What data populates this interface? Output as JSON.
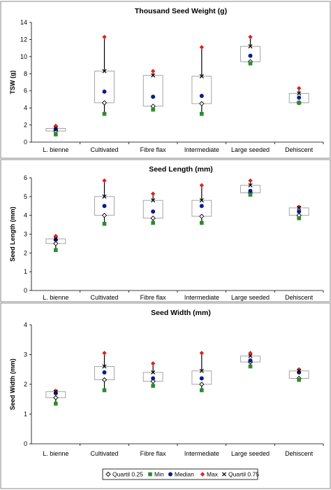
{
  "legend": {
    "entries": [
      "Quartil 0.25",
      "Min",
      "Median",
      "Max",
      "Quartil 0.75"
    ]
  },
  "colors": {
    "min": "#2e8b2e",
    "median": "#0a1e8c",
    "max": "#e02020",
    "box": "#9a9a9a",
    "panel_border": "#888888"
  },
  "chart_data": [
    {
      "type": "boxplot",
      "title": "Thousand Seed Weight (g)",
      "ylabel": "TSW (g)",
      "xlabel": "",
      "categories": [
        "L. bienne",
        "Cultivated",
        "Fibre flax",
        "Intermediate",
        "Large seeded",
        "Dehiscent"
      ],
      "ylim": [
        0,
        14
      ],
      "yticks": [
        "0",
        "2",
        "4",
        "6",
        "8",
        "10",
        "12",
        "14"
      ],
      "grid": false,
      "series": [
        {
          "name": "Quartil 0.25",
          "values": [
            1.3,
            4.6,
            4.2,
            4.5,
            9.4,
            4.6
          ]
        },
        {
          "name": "Min",
          "values": [
            0.9,
            3.3,
            3.8,
            3.3,
            9.2,
            4.6
          ]
        },
        {
          "name": "Median",
          "values": [
            1.5,
            5.9,
            5.3,
            5.4,
            10.1,
            5.2
          ]
        },
        {
          "name": "Max",
          "values": [
            1.9,
            12.3,
            8.3,
            11.1,
            12.3,
            6.3
          ]
        },
        {
          "name": "Quartil 0.75",
          "values": [
            1.6,
            8.3,
            7.8,
            7.7,
            11.2,
            5.7
          ]
        }
      ]
    },
    {
      "type": "boxplot",
      "title": "Seed Length (mm)",
      "ylabel": "Seed Length (mm)",
      "xlabel": "",
      "categories": [
        "L. bienne",
        "Cultivated",
        "Fibre flax",
        "Intermediate",
        "Large seeded",
        "Dehiscent"
      ],
      "ylim": [
        0,
        6
      ],
      "yticks": [
        "0",
        "1",
        "2",
        "3",
        "4",
        "5",
        "6"
      ],
      "grid": false,
      "series": [
        {
          "name": "Quartil 0.25",
          "values": [
            2.5,
            4.0,
            3.85,
            3.95,
            5.2,
            4.0
          ]
        },
        {
          "name": "Min",
          "values": [
            2.15,
            3.55,
            3.6,
            3.6,
            5.1,
            3.85
          ]
        },
        {
          "name": "Median",
          "values": [
            2.7,
            4.5,
            4.2,
            4.5,
            5.3,
            4.2
          ]
        },
        {
          "name": "Max",
          "values": [
            2.9,
            5.85,
            5.15,
            5.6,
            5.85,
            4.45
          ]
        },
        {
          "name": "Quartil 0.75",
          "values": [
            2.75,
            5.0,
            4.8,
            4.8,
            5.6,
            4.4
          ]
        }
      ]
    },
    {
      "type": "boxplot",
      "title": "Seed Width (mm)",
      "ylabel": "Seed Width (mm)",
      "xlabel": "",
      "categories": [
        "L. bienne",
        "Cultivated",
        "Fibre flax",
        "Intermediate",
        "Large seeded",
        "Dehiscent"
      ],
      "ylim": [
        0,
        4
      ],
      "yticks": [
        "0",
        "1",
        "2",
        "3",
        "4"
      ],
      "grid": false,
      "series": [
        {
          "name": "Quartil 0.25",
          "values": [
            1.55,
            2.15,
            2.1,
            2.0,
            2.75,
            2.2
          ]
        },
        {
          "name": "Min",
          "values": [
            1.35,
            1.8,
            1.95,
            1.8,
            2.6,
            2.15
          ]
        },
        {
          "name": "Median",
          "values": [
            1.7,
            2.4,
            2.2,
            2.2,
            2.8,
            2.4
          ]
        },
        {
          "name": "Max",
          "values": [
            1.78,
            3.05,
            2.7,
            3.05,
            3.05,
            2.5
          ]
        },
        {
          "name": "Quartil 0.75",
          "values": [
            1.75,
            2.6,
            2.4,
            2.45,
            2.95,
            2.45
          ]
        }
      ]
    }
  ]
}
